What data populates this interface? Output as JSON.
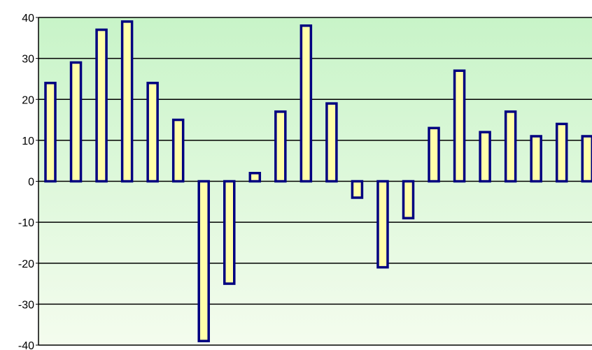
{
  "chart_data": {
    "type": "bar",
    "title": "",
    "xlabel": "",
    "ylabel": "",
    "ylim": [
      -40,
      40
    ],
    "yticks": [
      40,
      30,
      20,
      10,
      0,
      -10,
      -20,
      -30,
      -40
    ],
    "ytick_labels": [
      "40",
      "30",
      "20",
      "10",
      "0",
      "-10",
      "-20",
      "-30",
      "-40"
    ],
    "grid": true,
    "legend": "none",
    "values": [
      24,
      29,
      37,
      39,
      24,
      15,
      -39,
      -25,
      2,
      17,
      38,
      19,
      -4,
      -21,
      -9,
      13,
      27,
      12,
      17,
      11,
      14,
      11
    ],
    "colors": {
      "bar_fill": "#FFFFAA",
      "bar_stroke": "#000080",
      "gradient_top": "#C8F4C8",
      "gradient_bottom": "#F4FCEE",
      "gridline": "#000000"
    }
  }
}
